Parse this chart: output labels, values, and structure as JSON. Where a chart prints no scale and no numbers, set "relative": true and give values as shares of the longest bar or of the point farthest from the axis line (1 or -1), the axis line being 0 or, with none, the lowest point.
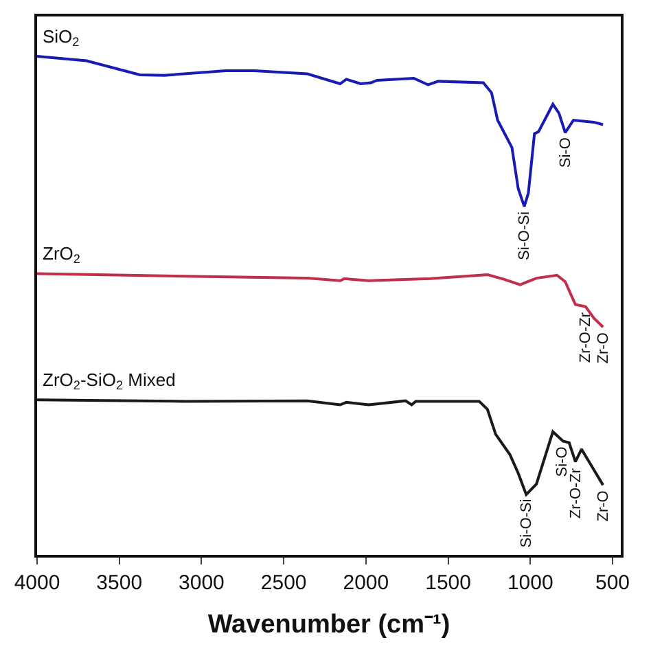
{
  "chart_data": {
    "type": "line",
    "relative": true,
    "xlabel": "Wavenumber (cm⁻¹)",
    "x": [
      4000,
      3699,
      3375,
      3226,
      2853,
      2679,
      2356,
      2157,
      2119,
      2032,
      1970,
      1933,
      1709,
      1622,
      1560,
      1286,
      1236,
      1199,
      1112,
      1074,
      1037,
      1012,
      975,
      950,
      863,
      826,
      788,
      738,
      614,
      558
    ],
    "xlim": [
      4000,
      450
    ],
    "xticks": [
      4000,
      3500,
      3000,
      2500,
      2000,
      1500,
      1000,
      500
    ],
    "series": [
      {
        "name": "SiO$_{2}$",
        "color": "#1a1ab4",
        "values": [
          1.0,
          0.991,
          0.963,
          0.962,
          0.971,
          0.971,
          0.965,
          0.945,
          0.954,
          0.945,
          0.947,
          0.952,
          0.956,
          0.943,
          0.95,
          0.947,
          0.927,
          0.872,
          0.817,
          0.735,
          0.699,
          0.726,
          0.845,
          0.849,
          0.904,
          0.886,
          0.847,
          0.872,
          0.868,
          0.863
        ]
      },
      {
        "name": "ZrO$_{2}$",
        "color": "#c0304a",
        "x": [
          4000,
          3102,
          2356,
          2157,
          2132,
          1983,
          1609,
          1260,
          1161,
          1062,
          963,
          838,
          788,
          726,
          664,
          614,
          558
        ],
        "values": [
          0.564,
          0.559,
          0.555,
          0.55,
          0.554,
          0.55,
          0.554,
          0.562,
          0.553,
          0.542,
          0.555,
          0.561,
          0.548,
          0.502,
          0.498,
          0.475,
          0.457
        ]
      },
      {
        "name": "ZrO$_{2}$-SiO$_{2}$ Mixed",
        "color": "#1a1a1a",
        "x": [
          4000,
          3102,
          2356,
          2157,
          2119,
          1983,
          1759,
          1722,
          1697,
          1311,
          1261,
          1211,
          1124,
          1074,
          1025,
          963,
          863,
          801,
          764,
          726,
          689,
          627,
          558
        ],
        "values": [
          0.311,
          0.308,
          0.309,
          0.301,
          0.306,
          0.301,
          0.309,
          0.301,
          0.308,
          0.308,
          0.292,
          0.242,
          0.201,
          0.164,
          0.121,
          0.142,
          0.247,
          0.228,
          0.225,
          0.187,
          0.212,
          0.178,
          0.14
        ]
      }
    ],
    "annotations": [
      {
        "text": "Si-O-Si",
        "x": 1037,
        "y": 0.699
      },
      {
        "text": "Si-O",
        "x": 788,
        "y": 0.847
      },
      {
        "text": "Zr-O-Zr",
        "x": 664,
        "y": 0.498
      },
      {
        "text": "Zr-O",
        "x": 558,
        "y": 0.457
      },
      {
        "text": "Si-O-Si",
        "x": 1025,
        "y": 0.121
      },
      {
        "text": "Si-O",
        "x": 801,
        "y": 0.228
      },
      {
        "text": "Zr-O-Zr",
        "x": 726,
        "y": 0.187
      },
      {
        "text": "Zr-O",
        "x": 558,
        "y": 0.14
      }
    ],
    "legend": false,
    "marker": "none",
    "line_style": "solid"
  }
}
